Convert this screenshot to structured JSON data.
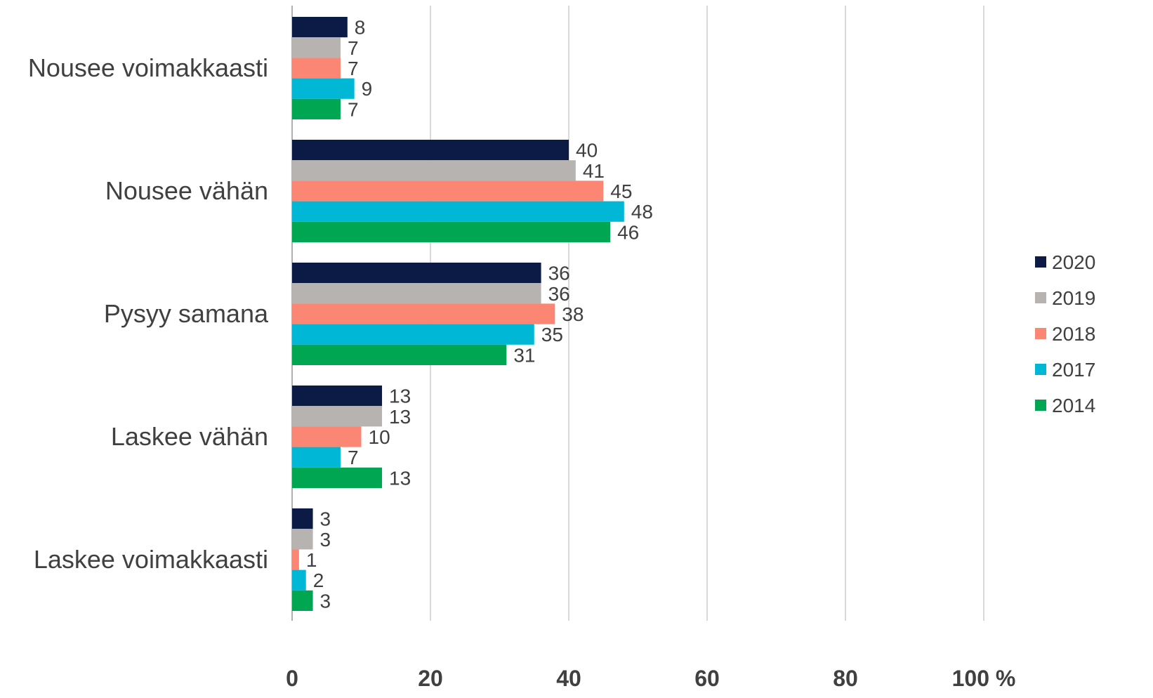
{
  "chart_data": {
    "type": "bar",
    "orientation": "horizontal",
    "categories": [
      "Nousee voimakkaasti",
      "Nousee vähän",
      "Pysyy samana",
      "Laskee vähän",
      "Laskee voimakkaasti"
    ],
    "series": [
      {
        "name": "2020",
        "color": "#0b1b45",
        "values": [
          8,
          40,
          36,
          13,
          3
        ]
      },
      {
        "name": "2019",
        "color": "#b7b3b0",
        "values": [
          7,
          41,
          36,
          13,
          3
        ]
      },
      {
        "name": "2018",
        "color": "#fa8673",
        "values": [
          7,
          45,
          38,
          10,
          1
        ]
      },
      {
        "name": "2017",
        "color": "#00b8d5",
        "values": [
          9,
          48,
          35,
          7,
          2
        ]
      },
      {
        "name": "2014",
        "color": "#00a651",
        "values": [
          7,
          46,
          31,
          13,
          3
        ]
      }
    ],
    "x_ticks": [
      "0",
      "20",
      "40",
      "60",
      "80",
      "100 %"
    ],
    "xlim": [
      0,
      100
    ],
    "grid": true,
    "legend_position": "right"
  }
}
